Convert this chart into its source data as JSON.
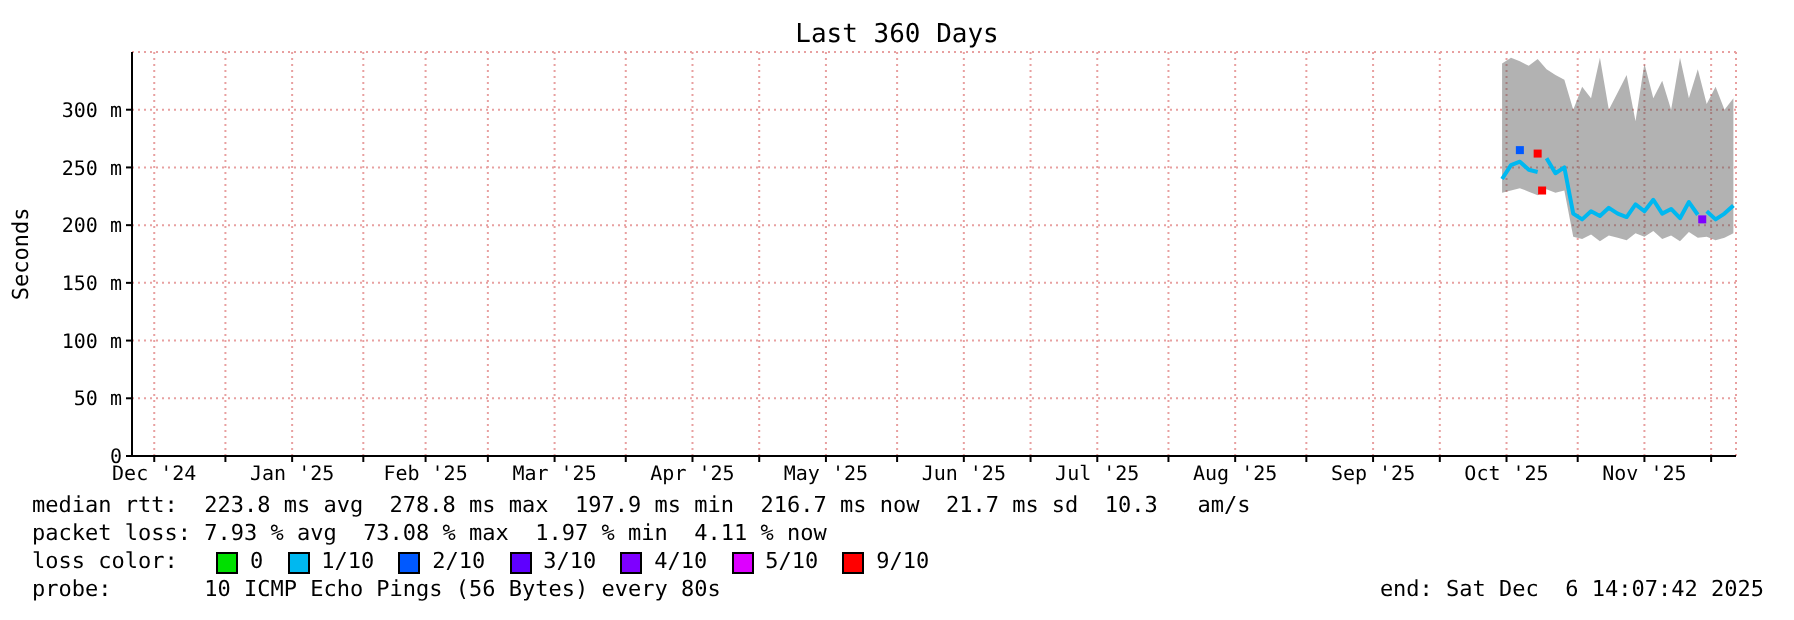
{
  "chart_data": {
    "type": "line",
    "title": "Last 360 Days",
    "ylabel": "Seconds",
    "legend_title": "loss color:",
    "legend": "bottom",
    "grid": true,
    "marker": "square",
    "line_style": "solid",
    "xlim": [
      "2024-12-11",
      "2025-12-06T14:07"
    ],
    "xticks": [
      {
        "value": "2024-12-16",
        "label": "Dec '24"
      },
      {
        "value": "2025-01-01",
        "label": null
      },
      {
        "value": "2025-01-16",
        "label": "Jan '25"
      },
      {
        "value": "2025-02-01",
        "label": null
      },
      {
        "value": "2025-02-15",
        "label": "Feb '25"
      },
      {
        "value": "2025-03-01",
        "label": null
      },
      {
        "value": "2025-03-16",
        "label": "Mar '25"
      },
      {
        "value": "2025-04-01",
        "label": null
      },
      {
        "value": "2025-04-16",
        "label": "Apr '25"
      },
      {
        "value": "2025-05-01",
        "label": null
      },
      {
        "value": "2025-05-16",
        "label": "May '25"
      },
      {
        "value": "2025-06-01",
        "label": null
      },
      {
        "value": "2025-06-16",
        "label": "Jun '25"
      },
      {
        "value": "2025-07-01",
        "label": null
      },
      {
        "value": "2025-07-16",
        "label": "Jul '25"
      },
      {
        "value": "2025-08-01",
        "label": null
      },
      {
        "value": "2025-08-16",
        "label": "Aug '25"
      },
      {
        "value": "2025-09-01",
        "label": null
      },
      {
        "value": "2025-09-16",
        "label": "Sep '25"
      },
      {
        "value": "2025-10-01",
        "label": null
      },
      {
        "value": "2025-10-16",
        "label": "Oct '25"
      },
      {
        "value": "2025-11-01",
        "label": null
      },
      {
        "value": "2025-11-16",
        "label": "Nov '25"
      },
      {
        "value": "2025-12-01",
        "label": null
      }
    ],
    "ylim": [
      0,
      350
    ],
    "yticks": [
      0,
      {
        "value": 50,
        "label": "50 m"
      },
      {
        "value": 100,
        "label": "100 m"
      },
      {
        "value": 150,
        "label": "150 m"
      },
      {
        "value": 200,
        "label": "200 m"
      },
      {
        "value": 250,
        "label": "250 m"
      },
      {
        "value": 300,
        "label": "300 m"
      }
    ],
    "x": [
      "2025-10-15",
      "2025-10-17",
      "2025-10-19",
      "2025-10-21",
      "2025-10-23",
      "2025-10-25",
      "2025-10-27",
      "2025-10-29",
      "2025-10-31",
      "2025-11-02",
      "2025-11-04",
      "2025-11-06",
      "2025-11-08",
      "2025-11-10",
      "2025-11-12",
      "2025-11-14",
      "2025-11-16",
      "2025-11-18",
      "2025-11-20",
      "2025-11-22",
      "2025-11-24",
      "2025-11-26",
      "2025-11-28",
      "2025-11-30",
      "2025-12-02",
      "2025-12-04",
      "2025-12-06"
    ],
    "series": [
      {
        "name": "0",
        "type": "scatter",
        "color": "#00e000",
        "values": [
          null,
          null,
          null,
          null,
          null,
          null,
          null,
          null,
          null,
          null,
          null,
          null,
          null,
          null,
          null,
          null,
          null,
          null,
          null,
          null,
          null,
          null,
          null,
          null,
          null,
          null,
          null
        ]
      },
      {
        "name": "1/10",
        "color": "#00b8f0",
        "marker": "none",
        "values": [
          240,
          252,
          255,
          248,
          246,
          258,
          245,
          250,
          210,
          205,
          212,
          208,
          215,
          210,
          207,
          218,
          212,
          222,
          210,
          214,
          206,
          220,
          209,
          212,
          205,
          210,
          217
        ],
        "lower": [
          228,
          230,
          232,
          229,
          226,
          231,
          228,
          230,
          190,
          188,
          192,
          186,
          191,
          189,
          187,
          193,
          190,
          195,
          188,
          191,
          186,
          194,
          189,
          190,
          187,
          189,
          193
        ],
        "upper": [
          340,
          345,
          342,
          338,
          344,
          335,
          330,
          326,
          300,
          320,
          310,
          345,
          300,
          315,
          330,
          290,
          340,
          310,
          325,
          300,
          345,
          310,
          335,
          305,
          320,
          300,
          310
        ]
      },
      {
        "name": "2/10",
        "type": "scatter",
        "color": "#0059ff",
        "x": [
          "2025-10-19"
        ],
        "values": [
          265
        ]
      },
      {
        "name": "3/10",
        "type": "scatter",
        "color": "#5e00ff",
        "values": [
          null,
          null,
          null,
          null,
          null,
          null,
          null,
          null,
          null,
          null,
          null,
          null,
          null,
          null,
          null,
          null,
          null,
          null,
          null,
          null,
          null,
          null,
          null,
          null,
          null,
          null,
          null
        ]
      },
      {
        "name": "4/10",
        "type": "scatter",
        "color": "#7e00ff",
        "x": [
          "2025-11-29"
        ],
        "values": [
          205
        ]
      },
      {
        "name": "5/10",
        "type": "scatter",
        "color": "#dd00ff",
        "values": [
          null,
          null,
          null,
          null,
          null,
          null,
          null,
          null,
          null,
          null,
          null,
          null,
          null,
          null,
          null,
          null,
          null,
          null,
          null,
          null,
          null,
          null,
          null,
          null,
          null,
          null,
          null
        ]
      },
      {
        "name": "9/10",
        "type": "scatter",
        "color": "#ff0000",
        "x": [
          "2025-10-23",
          "2025-10-24"
        ],
        "values": [
          262,
          230
        ]
      }
    ],
    "annotations": [
      "median rtt:  223.8 ms avg  278.8 ms max  197.9 ms min  216.7 ms now  21.7 ms sd  10.3   am/s",
      "packet loss: 7.93 % avg  73.08 % max  1.97 % min  4.11 % now",
      "probe:       10 ICMP Echo Pings (56 Bytes) every 80s",
      "end: Sat Dec  6 14:07:42 2025"
    ]
  }
}
